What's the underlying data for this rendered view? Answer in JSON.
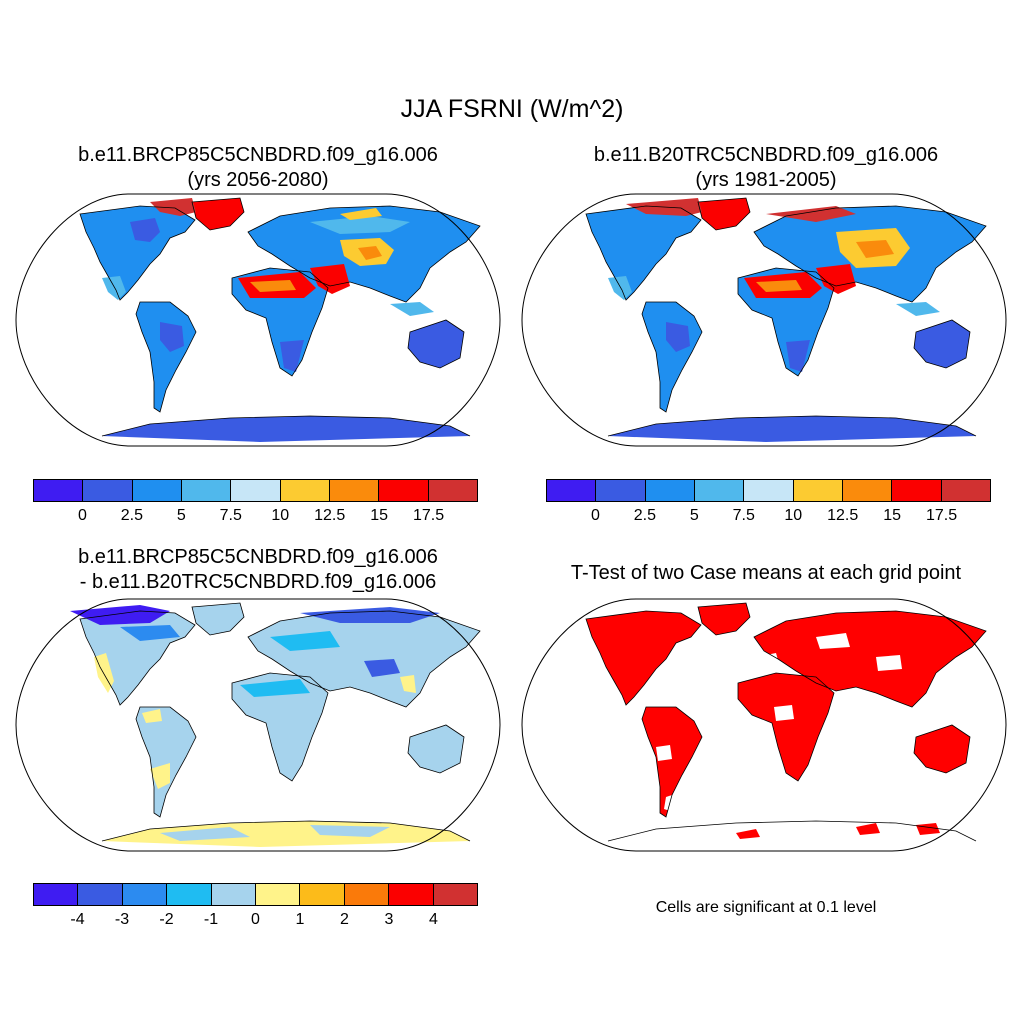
{
  "figure": {
    "title": "JJA FSRNI (W/m^2)",
    "panels": [
      {
        "id": "p1",
        "line1": "b.e11.BRCP85C5CNBDRD.f09_g16.006",
        "line2": "(yrs 2056-2080)"
      },
      {
        "id": "p2",
        "line1": "b.e11.B20TRC5CNBDRD.f09_g16.006",
        "line2": "(yrs 1981-2005)"
      },
      {
        "id": "p3",
        "line1": "b.e11.BRCP85C5CNBDRD.f09_g16.006",
        "line2": "- b.e11.B20TRC5CNBDRD.f09_g16.006"
      },
      {
        "id": "p4",
        "line1": "T-Test of two Case means at each grid point",
        "line2": ""
      }
    ],
    "significance_note": "Cells are significant at 0.1 level"
  },
  "colorbars": {
    "absolute": {
      "colors": [
        "#3f1cf2",
        "#3a5be2",
        "#1f8ff0",
        "#50b8ec",
        "#c7e6f7",
        "#fccb31",
        "#fa8b0c",
        "#fb0000",
        "#d13131"
      ],
      "labels": [
        "0",
        "2.5",
        "5",
        "7.5",
        "10",
        "12.5",
        "15",
        "17.5"
      ]
    },
    "difference": {
      "colors": [
        "#3f1cf2",
        "#3a5be2",
        "#2c8bf0",
        "#1fbcf2",
        "#a6d3ed",
        "#fff38a",
        "#fcbb1a",
        "#fa7a0a",
        "#fb0000",
        "#d13131"
      ],
      "labels": [
        "-4",
        "-3",
        "-2",
        "-1",
        "0",
        "1",
        "2",
        "3",
        "4"
      ]
    },
    "significance_color": "#ff0000"
  }
}
